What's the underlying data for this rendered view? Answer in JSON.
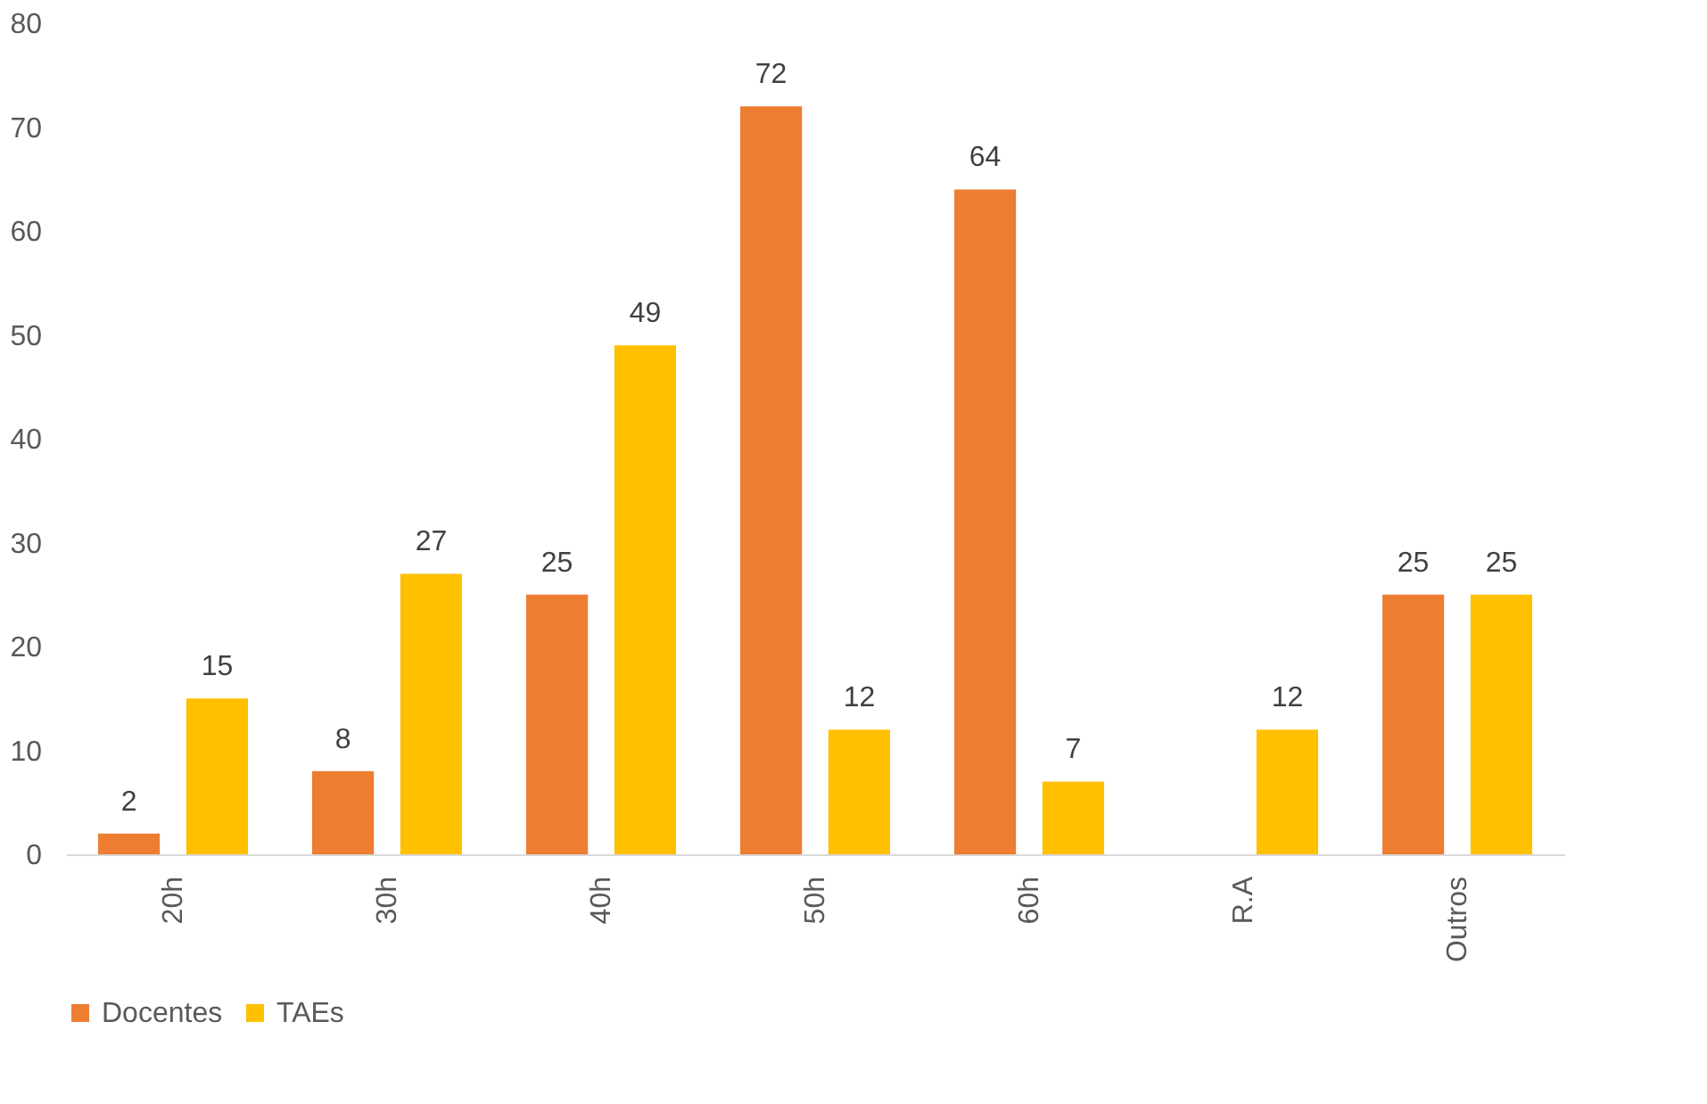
{
  "chart_data": {
    "type": "bar",
    "categories": [
      "20h",
      "30h",
      "40h",
      "50h",
      "60h",
      "R.A",
      "Outros"
    ],
    "series": [
      {
        "name": "Docentes",
        "color": "#ed7d31",
        "values": [
          2,
          8,
          25,
          72,
          64,
          null,
          25
        ]
      },
      {
        "name": "TAEs",
        "color": "#ffc000",
        "values": [
          15,
          27,
          49,
          12,
          7,
          12,
          25
        ]
      }
    ],
    "ylim": [
      0,
      80
    ],
    "yticks": [
      0,
      10,
      20,
      30,
      40,
      50,
      60,
      70,
      80
    ],
    "grid": false,
    "legend": "bottom",
    "data_labels": true
  }
}
